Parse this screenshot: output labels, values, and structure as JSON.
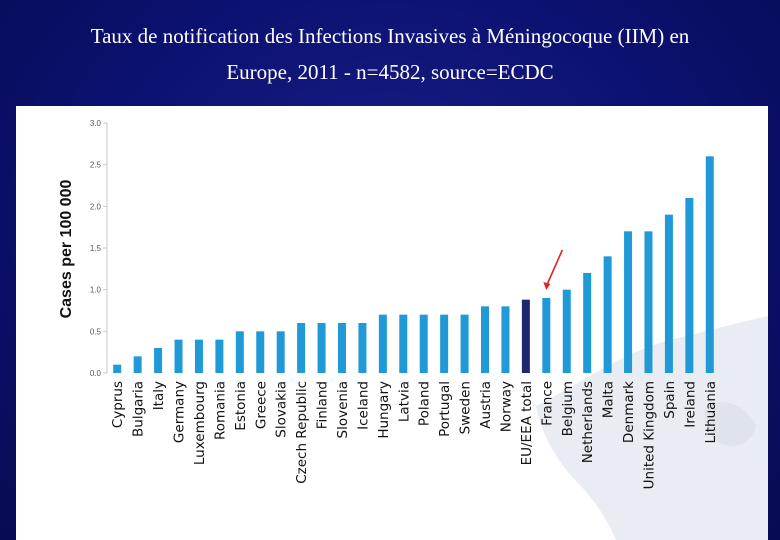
{
  "slide": {
    "title_line1": "Taux de notification des Infections Invasives à Méningocoque (IIM) en",
    "title_line2": "Europe, 2011 - n=4582, source=ECDC"
  },
  "chart_data": {
    "type": "bar",
    "title": "",
    "xlabel": "",
    "ylabel": "Cases per 100 000",
    "ylim": [
      0,
      3.0
    ],
    "yticks": [
      "0.0",
      "0.5",
      "1.0",
      "1.5",
      "2.0",
      "2.5",
      "3.0"
    ],
    "categories": [
      "Cyprus",
      "Bulgaria",
      "Italy",
      "Germany",
      "Luxembourg",
      "Romania",
      "Estonia",
      "Greece",
      "Slovakia",
      "Czech Republic",
      "Finland",
      "Slovenia",
      "Iceland",
      "Hungary",
      "Latvia",
      "Poland",
      "Portugal",
      "Sweden",
      "Austria",
      "Norway",
      "EU/EEA total",
      "France",
      "Belgium",
      "Netherlands",
      "Malta",
      "Denmark",
      "United Kingdom",
      "Spain",
      "Ireland",
      "Lithuania"
    ],
    "values": [
      0.1,
      0.2,
      0.3,
      0.4,
      0.4,
      0.4,
      0.5,
      0.5,
      0.5,
      0.6,
      0.6,
      0.6,
      0.6,
      0.7,
      0.7,
      0.7,
      0.7,
      0.7,
      0.8,
      0.8,
      0.88,
      0.9,
      1.0,
      1.2,
      1.4,
      1.7,
      1.7,
      1.9,
      2.1,
      2.6
    ],
    "highlight_index": 20,
    "arrow_target": "France",
    "colors": {
      "bar": "#1f9ad6",
      "highlight": "#1c2a6b",
      "arrow": "#e0241c",
      "axis": "#c8c8c8"
    }
  }
}
